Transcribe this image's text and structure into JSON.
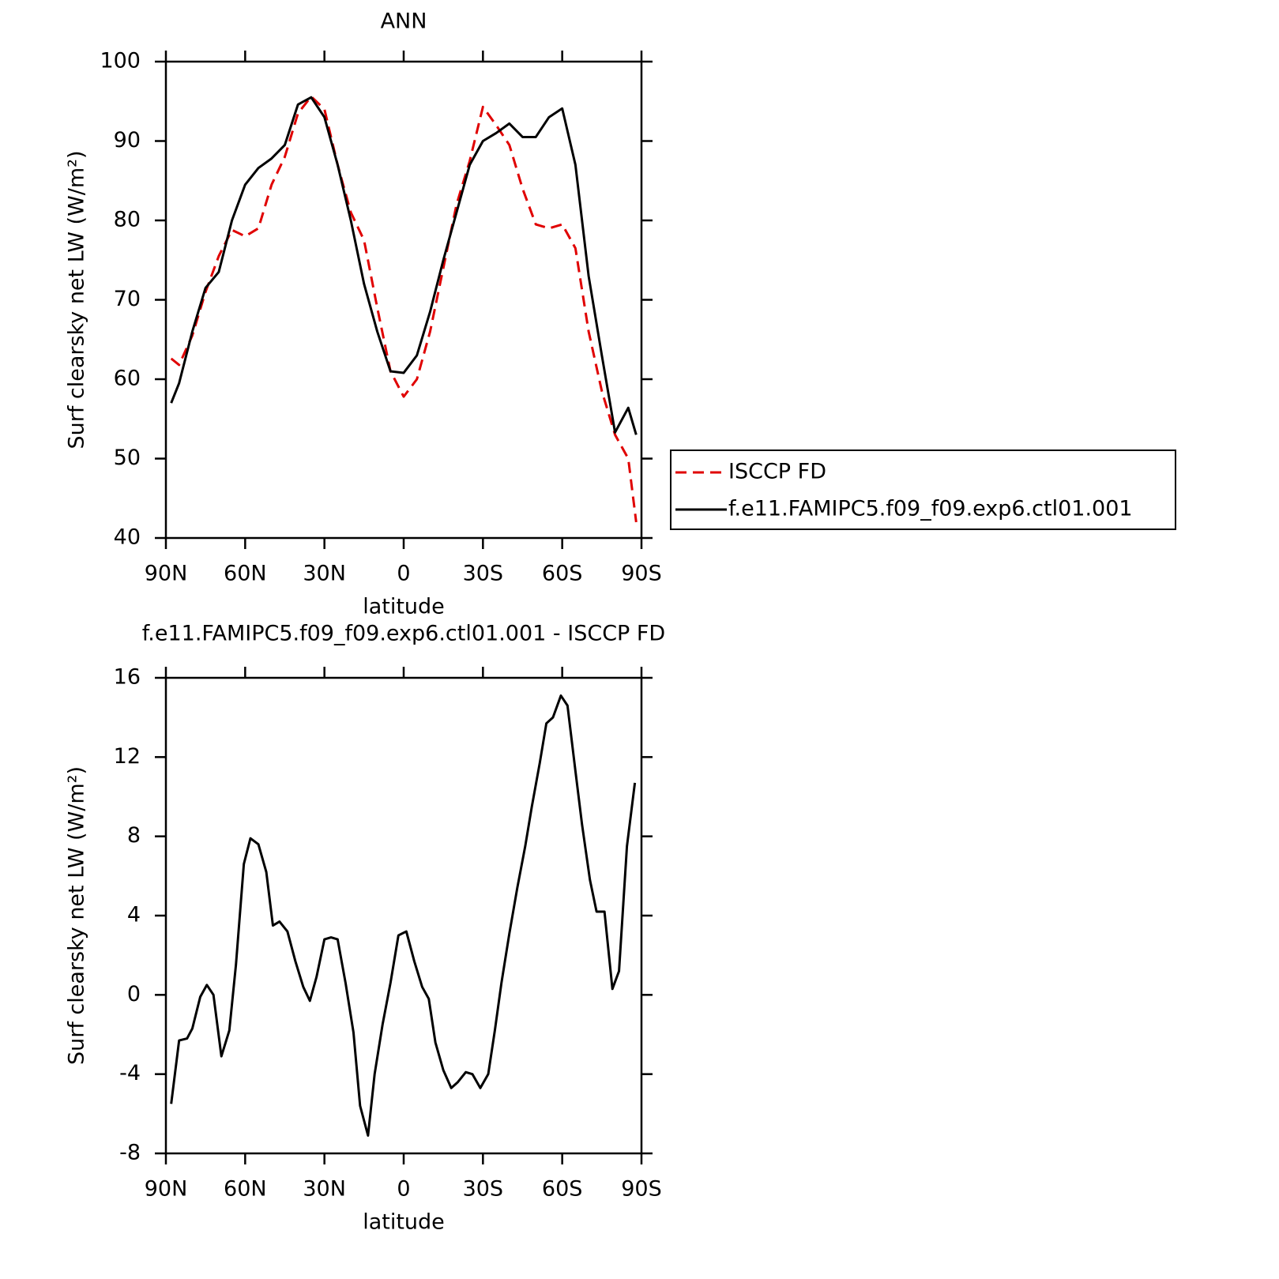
{
  "chart_data": [
    {
      "type": "line",
      "title": "ANN",
      "xlabel": "latitude",
      "ylabel": "Surf clearsky net LW (W/m²)",
      "x": [
        88,
        85,
        80,
        75,
        70,
        65,
        60,
        55,
        50,
        45,
        40,
        35,
        30,
        25,
        20,
        15,
        10,
        5,
        0,
        -5,
        -10,
        -15,
        -20,
        -25,
        -30,
        -35,
        -40,
        -45,
        -50,
        -55,
        -60,
        -65,
        -70,
        -75,
        -80,
        -85,
        -88
      ],
      "series": [
        {
          "name": "ISCCP FD",
          "color": "#e00000",
          "linestyle": "dashed",
          "values": [
            62.6,
            61.8,
            65.5,
            71,
            75.5,
            78.8,
            78,
            79,
            84.5,
            88,
            93.5,
            95.6,
            94,
            87,
            81,
            77.5,
            69,
            61,
            57.8,
            60,
            66,
            74,
            82,
            87.5,
            94.3,
            92,
            89.5,
            84,
            79.5,
            79,
            79.5,
            76.5,
            66,
            58.5,
            53,
            50,
            42
          ]
        },
        {
          "name": "f.e11.FAMIPC5.f09_f09.exp6.ctl01.001",
          "color": "#000000",
          "linestyle": "solid",
          "values": [
            57,
            59.5,
            66,
            71.5,
            73.5,
            80,
            84.5,
            86.6,
            87.8,
            89.5,
            94.6,
            95.5,
            93,
            87,
            80,
            72,
            66,
            61,
            60.8,
            63,
            68.5,
            75,
            81,
            87,
            90,
            91,
            92.2,
            90.5,
            90.5,
            93,
            94.1,
            87,
            73,
            63,
            53.3,
            56.4,
            53
          ]
        }
      ],
      "xlim": [
        90,
        -90
      ],
      "xticks": [
        {
          "value": 90,
          "label": "90N"
        },
        {
          "value": 60,
          "label": "60N"
        },
        {
          "value": 30,
          "label": "30N"
        },
        0,
        {
          "value": -30,
          "label": "30S"
        },
        {
          "value": -60,
          "label": "60S"
        },
        {
          "value": -90,
          "label": "90S"
        }
      ],
      "ylim": [
        40,
        100
      ],
      "yticks": [
        40,
        50,
        60,
        70,
        80,
        90,
        100
      ],
      "legend": "right"
    },
    {
      "type": "line",
      "title": "f.e11.FAMIPC5.f09_f09.exp6.ctl01.001 - ISCCP FD",
      "xlabel": "latitude",
      "ylabel": "Surf clearsky net LW (W/m²)",
      "x": [
        88,
        85,
        82,
        80,
        77,
        74.5,
        72,
        69,
        66,
        63.5,
        60.5,
        58,
        55,
        52,
        49.5,
        47,
        44,
        41,
        38,
        35.5,
        33,
        30,
        27.5,
        25,
        22,
        19,
        16.5,
        13.5,
        11,
        8,
        5,
        2,
        -1,
        -4,
        -7,
        -9.5,
        -12,
        -15,
        -18,
        -20.5,
        -23.5,
        -26,
        -29,
        -32,
        -34.5,
        -37,
        -40,
        -43,
        -46,
        -48.5,
        -51.5,
        -54,
        -56.5,
        -59.5,
        -62,
        -65,
        -67.5,
        -70.5,
        -73,
        -76,
        -79,
        -81.5,
        -84.5,
        -87.5
      ],
      "values": [
        -5.5,
        -2.3,
        -2.2,
        -1.7,
        -0.1,
        0.5,
        0,
        -3.1,
        -1.8,
        1.5,
        6.6,
        7.9,
        7.6,
        6.2,
        3.5,
        3.7,
        3.2,
        1.7,
        0.4,
        -0.3,
        0.9,
        2.8,
        2.9,
        2.8,
        0.6,
        -1.9,
        -5.6,
        -7.1,
        -4,
        -1.5,
        0.6,
        3,
        3.2,
        1.7,
        0.4,
        -0.2,
        -2.4,
        -3.8,
        -4.7,
        -4.4,
        -3.9,
        -4,
        -4.7,
        -4,
        -1.8,
        0.6,
        3.1,
        5.4,
        7.5,
        9.5,
        11.7,
        13.7,
        14,
        15.1,
        14.6,
        11.3,
        8.6,
        5.8,
        4.2,
        4.2,
        0.3,
        1.2,
        7.5,
        10.7
      ],
      "color": "#000000",
      "linestyle": "solid",
      "xlim": [
        90,
        -90
      ],
      "xticks": [
        {
          "value": 90,
          "label": "90N"
        },
        {
          "value": 60,
          "label": "60N"
        },
        {
          "value": 30,
          "label": "30N"
        },
        0,
        {
          "value": -30,
          "label": "30S"
        },
        {
          "value": -60,
          "label": "60S"
        },
        {
          "value": -90,
          "label": "90S"
        }
      ],
      "ylim": [
        -8,
        16
      ],
      "yticks": [
        -8,
        -4,
        0,
        4,
        8,
        12,
        16
      ]
    }
  ]
}
